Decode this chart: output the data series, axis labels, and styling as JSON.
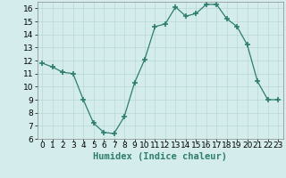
{
  "x": [
    0,
    1,
    2,
    3,
    4,
    5,
    6,
    7,
    8,
    9,
    10,
    11,
    12,
    13,
    14,
    15,
    16,
    17,
    18,
    19,
    20,
    21,
    22,
    23
  ],
  "y": [
    11.8,
    11.5,
    11.1,
    11.0,
    9.0,
    7.2,
    6.5,
    6.4,
    7.7,
    10.3,
    12.1,
    14.6,
    14.8,
    16.1,
    15.4,
    15.6,
    16.3,
    16.3,
    15.2,
    14.6,
    13.2,
    10.4,
    9.0,
    9.0
  ],
  "xlabel": "Humidex (Indice chaleur)",
  "line_color": "#2e7d6e",
  "marker_color": "#2e7d6e",
  "background_color": "#d4edec",
  "grid_color": "#b8d8d4",
  "ylim": [
    6,
    16.5
  ],
  "xlim": [
    -0.5,
    23.5
  ],
  "yticks": [
    6,
    7,
    8,
    9,
    10,
    11,
    12,
    13,
    14,
    15,
    16
  ],
  "xtick_labels": [
    "0",
    "1",
    "2",
    "3",
    "4",
    "5",
    "6",
    "7",
    "8",
    "9",
    "10",
    "11",
    "12",
    "13",
    "14",
    "15",
    "16",
    "17",
    "18",
    "19",
    "20",
    "21",
    "22",
    "23"
  ],
  "xlabel_fontsize": 7.5,
  "tick_fontsize": 6.5
}
